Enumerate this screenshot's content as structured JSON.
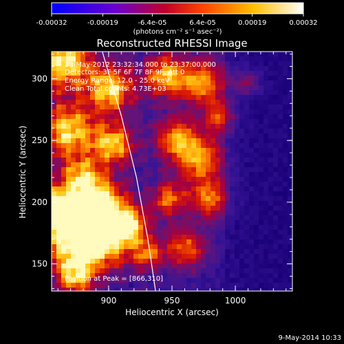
{
  "colorbar": {
    "ticks": [
      "-0.00032",
      "-0.00019",
      "-6.4e-05",
      "6.4e-05",
      "0.00019",
      "0.00032"
    ],
    "tick_values": [
      -0.00032,
      -0.00019,
      -6.4e-05,
      6.4e-05,
      0.00019,
      0.00032
    ],
    "range": [
      -0.00032,
      0.00032
    ],
    "unit_label": "(photons cm⁻² s⁻¹ asec⁻²)",
    "colors": [
      "#0000ff",
      "#6a00d0",
      "#c0002a",
      "#ff4400",
      "#ffbe00",
      "#ffffff"
    ]
  },
  "chart_data": {
    "type": "heatmap",
    "title": "Reconstructed RHESSI Image",
    "xlabel": "Heliocentric X (arcsec)",
    "ylabel": "Heliocentric Y (arcsec)",
    "xlim": [
      855,
      1045
    ],
    "ylim": [
      128,
      322
    ],
    "xticks": [
      900,
      950,
      1000
    ],
    "yticks": [
      150,
      200,
      250,
      300
    ],
    "limb_curve_points": [
      [
        895,
        322
      ],
      [
        910,
        270
      ],
      [
        922,
        220
      ],
      [
        931,
        170
      ],
      [
        937,
        128
      ]
    ],
    "annotations": {
      "time": "23-May-2012 23:32:34.000 to 23:37:00.000",
      "detectors": "Detectors: 3F 5F 6F 7F 8F 9F, Att 0",
      "energy": "Energy Range: 12.0 - 25.0 keV",
      "clean": "Clean    Total counts: 4.73E+03",
      "peak": "Position at Peak = [866,310]"
    }
  },
  "footer": {
    "date": "9-May-2014 10:33"
  }
}
